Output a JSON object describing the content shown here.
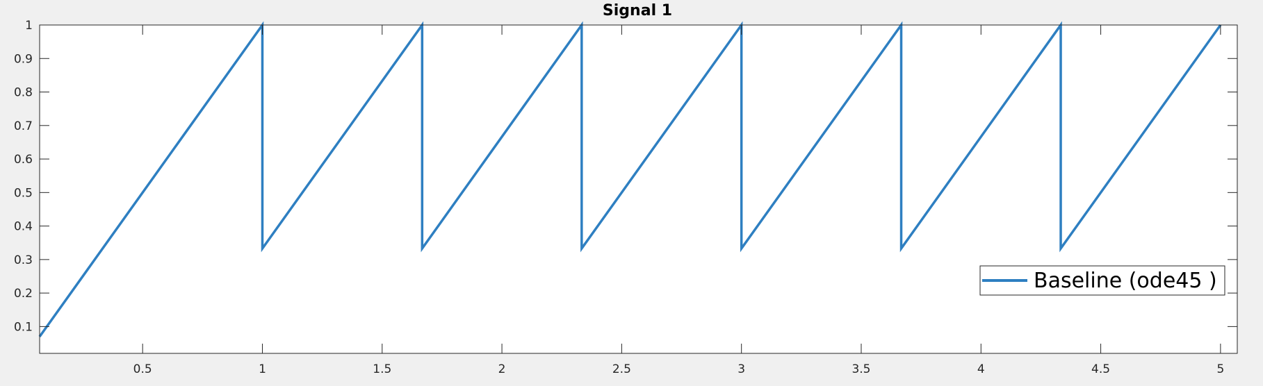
{
  "chart_data": {
    "type": "line",
    "title": "Signal 1",
    "xlabel": "",
    "ylabel": "",
    "xlim": [
      0.07,
      5.07
    ],
    "ylim": [
      0.02,
      1.0
    ],
    "xticks": [
      0.5,
      1,
      1.5,
      2,
      2.5,
      3,
      3.5,
      4,
      4.5,
      5
    ],
    "xtick_labels": [
      "0.5",
      "1",
      "1.5",
      "2",
      "2.5",
      "3",
      "3.5",
      "4",
      "4.5",
      "5"
    ],
    "yticks": [
      0.1,
      0.2,
      0.3,
      0.4,
      0.5,
      0.6,
      0.7,
      0.8,
      0.9,
      1
    ],
    "ytick_labels": [
      "0.1",
      "0.2",
      "0.3",
      "0.4",
      "0.5",
      "0.6",
      "0.7",
      "0.8",
      "0.9",
      "1"
    ],
    "grid": false,
    "legend_position": "right",
    "series": [
      {
        "name": "Baseline (ode45 )",
        "color": "#2e7fc1",
        "x": [
          0.07,
          1.0,
          1.0,
          1.667,
          1.667,
          2.333,
          2.333,
          3.0,
          3.0,
          3.667,
          3.667,
          4.333,
          4.333,
          5.0
        ],
        "y": [
          0.07,
          1.0,
          0.333,
          1.0,
          0.333,
          1.0,
          0.333,
          1.0,
          0.333,
          1.0,
          0.333,
          1.0,
          0.333,
          1.0
        ]
      }
    ]
  }
}
